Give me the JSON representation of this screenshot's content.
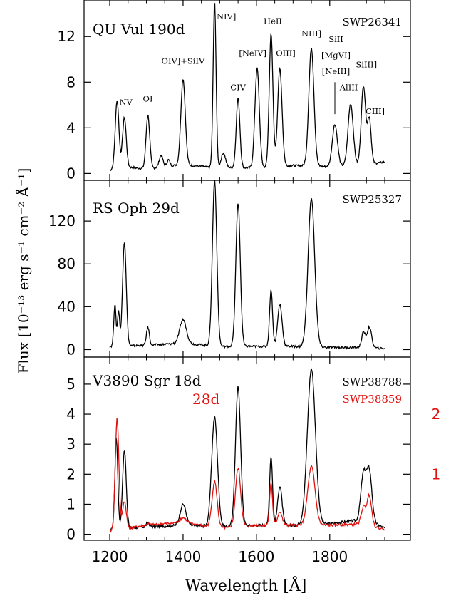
{
  "ylabel": "Flux [10⁻¹³ erg s⁻¹ cm⁻² Å⁻¹]",
  "xlabel": "Wavelength [Å]",
  "right_scale": {
    "labels": [
      "2",
      "1"
    ],
    "values": [
      4,
      2
    ],
    "color": "#e0110f"
  },
  "colors": {
    "main": "#000000",
    "second": "#e0110f"
  },
  "chart_data": [
    {
      "type": "line",
      "title": "QU Vul 190d",
      "spectrum_id": "SWP26341",
      "xlim": [
        1130,
        2020
      ],
      "ylim": [
        -0.6,
        15.2
      ],
      "xticks": [
        1200,
        1400,
        1600,
        1800
      ],
      "yticks": [
        0,
        4,
        8,
        12
      ],
      "ytick_labels": [
        "0",
        "4",
        "8",
        "12"
      ],
      "baseline": [
        [
          1200,
          0.3
        ],
        [
          1235,
          0.6
        ],
        [
          1300,
          0.4
        ],
        [
          1400,
          0.8
        ],
        [
          1480,
          0.5
        ],
        [
          1600,
          0.5
        ],
        [
          1700,
          0.7
        ],
        [
          1800,
          0.6
        ],
        [
          1900,
          0.8
        ],
        [
          1950,
          1.0
        ]
      ],
      "peaks": [
        {
          "x": 1220,
          "y": 6.4,
          "w": 5
        },
        {
          "x": 1240,
          "y": 4.9,
          "w": 5
        },
        {
          "x": 1304,
          "y": 5.1,
          "w": 5
        },
        {
          "x": 1340,
          "y": 1.6,
          "w": 5
        },
        {
          "x": 1360,
          "y": 1.2,
          "w": 4
        },
        {
          "x": 1400,
          "y": 8.3,
          "w": 6
        },
        {
          "x": 1486,
          "y": 15.0,
          "w": 4
        },
        {
          "x": 1510,
          "y": 1.8,
          "w": 6
        },
        {
          "x": 1550,
          "y": 6.6,
          "w": 5
        },
        {
          "x": 1602,
          "y": 9.2,
          "w": 6
        },
        {
          "x": 1640,
          "y": 12.2,
          "w": 5
        },
        {
          "x": 1664,
          "y": 9.2,
          "w": 6
        },
        {
          "x": 1750,
          "y": 11.0,
          "w": 7
        },
        {
          "x": 1814,
          "y": 4.3,
          "w": 7
        },
        {
          "x": 1857,
          "y": 6.1,
          "w": 7
        },
        {
          "x": 1892,
          "y": 7.7,
          "w": 6
        },
        {
          "x": 1908,
          "y": 4.8,
          "w": 5
        }
      ],
      "labels": [
        {
          "text": "NV",
          "x": 1244,
          "y": 6.0
        },
        {
          "text": "OI",
          "x": 1304,
          "y": 6.3
        },
        {
          "text": "OIV]+SiIV",
          "x": 1400,
          "y": 9.6
        },
        {
          "text": "NIV]",
          "x": 1518,
          "y": 13.5
        },
        {
          "text": "CIV",
          "x": 1550,
          "y": 7.3
        },
        {
          "text": "[NeIV]",
          "x": 1590,
          "y": 10.3
        },
        {
          "text": "HeII",
          "x": 1645,
          "y": 13.1
        },
        {
          "text": "OIII]",
          "x": 1680,
          "y": 10.3
        },
        {
          "text": "NIII]",
          "x": 1750,
          "y": 12.0
        },
        {
          "text": "SiII",
          "x": 1817,
          "y": 11.5
        },
        {
          "text": "[MgVI]",
          "x": 1817,
          "y": 10.1
        },
        {
          "text": "[NeIII]",
          "x": 1817,
          "y": 8.7
        },
        {
          "text": "AlIII",
          "x": 1852,
          "y": 7.3
        },
        {
          "text": "SiIII]",
          "x": 1900,
          "y": 9.3
        },
        {
          "text": "CIII]",
          "x": 1924,
          "y": 5.2
        }
      ]
    },
    {
      "type": "line",
      "title": "RS Oph 29d",
      "spectrum_id": "SWP25327",
      "xlim": [
        1130,
        2020
      ],
      "ylim": [
        -7,
        158
      ],
      "xticks": [
        1200,
        1400,
        1600,
        1800
      ],
      "yticks": [
        0,
        40,
        80,
        120
      ],
      "ytick_labels": [
        "0",
        "40",
        "80",
        "120"
      ],
      "baseline": [
        [
          1200,
          3
        ],
        [
          1300,
          4
        ],
        [
          1400,
          6
        ],
        [
          1500,
          3
        ],
        [
          1600,
          3
        ],
        [
          1700,
          3
        ],
        [
          1800,
          2
        ],
        [
          1900,
          2
        ],
        [
          1950,
          1
        ]
      ],
      "peaks": [
        {
          "x": 1214,
          "y": 42,
          "w": 3
        },
        {
          "x": 1224,
          "y": 36,
          "w": 3
        },
        {
          "x": 1240,
          "y": 101,
          "w": 5
        },
        {
          "x": 1304,
          "y": 21,
          "w": 4
        },
        {
          "x": 1400,
          "y": 28,
          "w": 9
        },
        {
          "x": 1486,
          "y": 158,
          "w": 6
        },
        {
          "x": 1550,
          "y": 137,
          "w": 6
        },
        {
          "x": 1640,
          "y": 56,
          "w": 4
        },
        {
          "x": 1664,
          "y": 42,
          "w": 6
        },
        {
          "x": 1750,
          "y": 141,
          "w": 9
        },
        {
          "x": 1892,
          "y": 16,
          "w": 5
        },
        {
          "x": 1908,
          "y": 21,
          "w": 6
        }
      ],
      "labels": []
    },
    {
      "type": "line",
      "title": "V3890 Sgr 18d",
      "spectrum_id": "SWP38788",
      "xlim": [
        1130,
        2020
      ],
      "ylim": [
        -0.2,
        5.9
      ],
      "xticks": [
        1200,
        1400,
        1600,
        1800
      ],
      "yticks": [
        0,
        1,
        2,
        3,
        4,
        5
      ],
      "ytick_labels": [
        "0",
        "1",
        "2",
        "3",
        "4",
        "5"
      ],
      "series": [
        {
          "name": "18d",
          "color": "#000000",
          "baseline": [
            [
              1200,
              0.15
            ],
            [
              1300,
              0.25
            ],
            [
              1400,
              0.3
            ],
            [
              1500,
              0.25
            ],
            [
              1600,
              0.3
            ],
            [
              1700,
              0.3
            ],
            [
              1800,
              0.35
            ],
            [
              1900,
              0.5
            ],
            [
              1950,
              0.2
            ]
          ],
          "peaks": [
            {
              "x": 1218,
              "y": 3.2,
              "w": 4
            },
            {
              "x": 1240,
              "y": 2.8,
              "w": 5
            },
            {
              "x": 1304,
              "y": 0.4,
              "w": 4
            },
            {
              "x": 1400,
              "y": 1.0,
              "w": 8
            },
            {
              "x": 1486,
              "y": 3.9,
              "w": 8
            },
            {
              "x": 1550,
              "y": 4.9,
              "w": 7
            },
            {
              "x": 1640,
              "y": 2.6,
              "w": 4
            },
            {
              "x": 1664,
              "y": 1.6,
              "w": 6
            },
            {
              "x": 1750,
              "y": 5.5,
              "w": 11
            },
            {
              "x": 1892,
              "y": 2.0,
              "w": 7
            },
            {
              "x": 1908,
              "y": 2.1,
              "w": 7
            }
          ]
        },
        {
          "name": "28d",
          "spectrum_id": "SWP38859",
          "color": "#e0110f",
          "baseline": [
            [
              1200,
              0.1
            ],
            [
              1300,
              0.3
            ],
            [
              1400,
              0.4
            ],
            [
              1500,
              0.2
            ],
            [
              1600,
              0.3
            ],
            [
              1700,
              0.3
            ],
            [
              1800,
              0.3
            ],
            [
              1900,
              0.35
            ],
            [
              1950,
              0.15
            ]
          ],
          "peaks": [
            {
              "x": 1220,
              "y": 3.85,
              "w": 5
            },
            {
              "x": 1240,
              "y": 1.1,
              "w": 5
            },
            {
              "x": 1304,
              "y": 0.35,
              "w": 4
            },
            {
              "x": 1400,
              "y": 0.55,
              "w": 8
            },
            {
              "x": 1486,
              "y": 1.75,
              "w": 7
            },
            {
              "x": 1550,
              "y": 2.2,
              "w": 7
            },
            {
              "x": 1640,
              "y": 1.7,
              "w": 4
            },
            {
              "x": 1664,
              "y": 0.75,
              "w": 6
            },
            {
              "x": 1750,
              "y": 2.25,
              "w": 10
            },
            {
              "x": 1892,
              "y": 0.9,
              "w": 6
            },
            {
              "x": 1908,
              "y": 1.3,
              "w": 6
            }
          ]
        }
      ],
      "labels": []
    }
  ]
}
